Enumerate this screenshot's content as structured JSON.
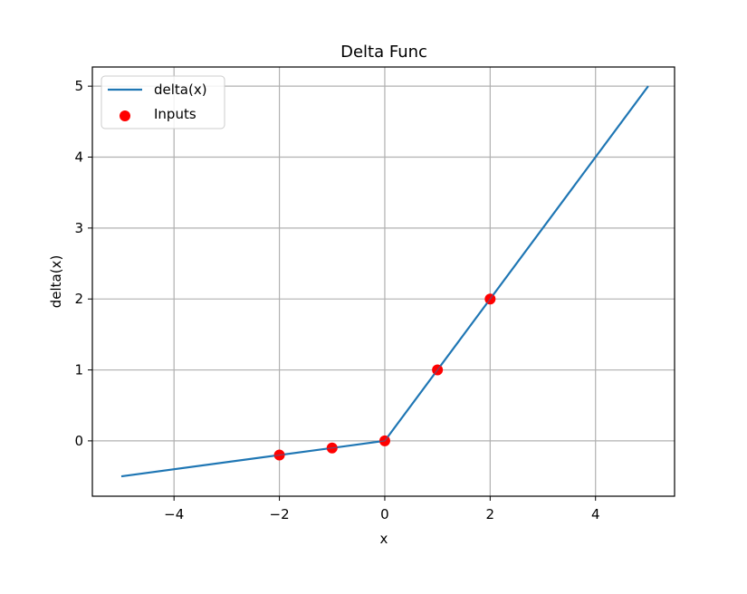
{
  "chart_data": {
    "type": "line",
    "title": "Delta Func",
    "xlabel": "x",
    "ylabel": "delta(x)",
    "xlim": [
      -5.55,
      5.5
    ],
    "ylim": [
      -0.78,
      5.27
    ],
    "grid": true,
    "legend_position": "upper left",
    "xticks": [
      -4,
      -2,
      0,
      2,
      4
    ],
    "xtick_labels": [
      "−4",
      "−2",
      "0",
      "2",
      "4"
    ],
    "yticks": [
      0,
      1,
      2,
      3,
      4,
      5
    ],
    "ytick_labels": [
      "0",
      "1",
      "2",
      "3",
      "4",
      "5"
    ],
    "series": [
      {
        "name": "delta(x)",
        "kind": "line",
        "color": "#1f77b4",
        "x": [
          -5,
          0,
          5
        ],
        "y": [
          -0.5,
          0,
          5
        ]
      },
      {
        "name": "Inputs",
        "kind": "scatter",
        "color": "#ff0000",
        "x": [
          -2,
          -1,
          0,
          1,
          2
        ],
        "y": [
          -0.2,
          -0.1,
          0,
          1,
          2
        ]
      }
    ],
    "legend": [
      {
        "label": "delta(x)",
        "kind": "line",
        "color": "#1f77b4"
      },
      {
        "label": "Inputs",
        "kind": "scatter",
        "color": "#ff0000"
      }
    ]
  }
}
